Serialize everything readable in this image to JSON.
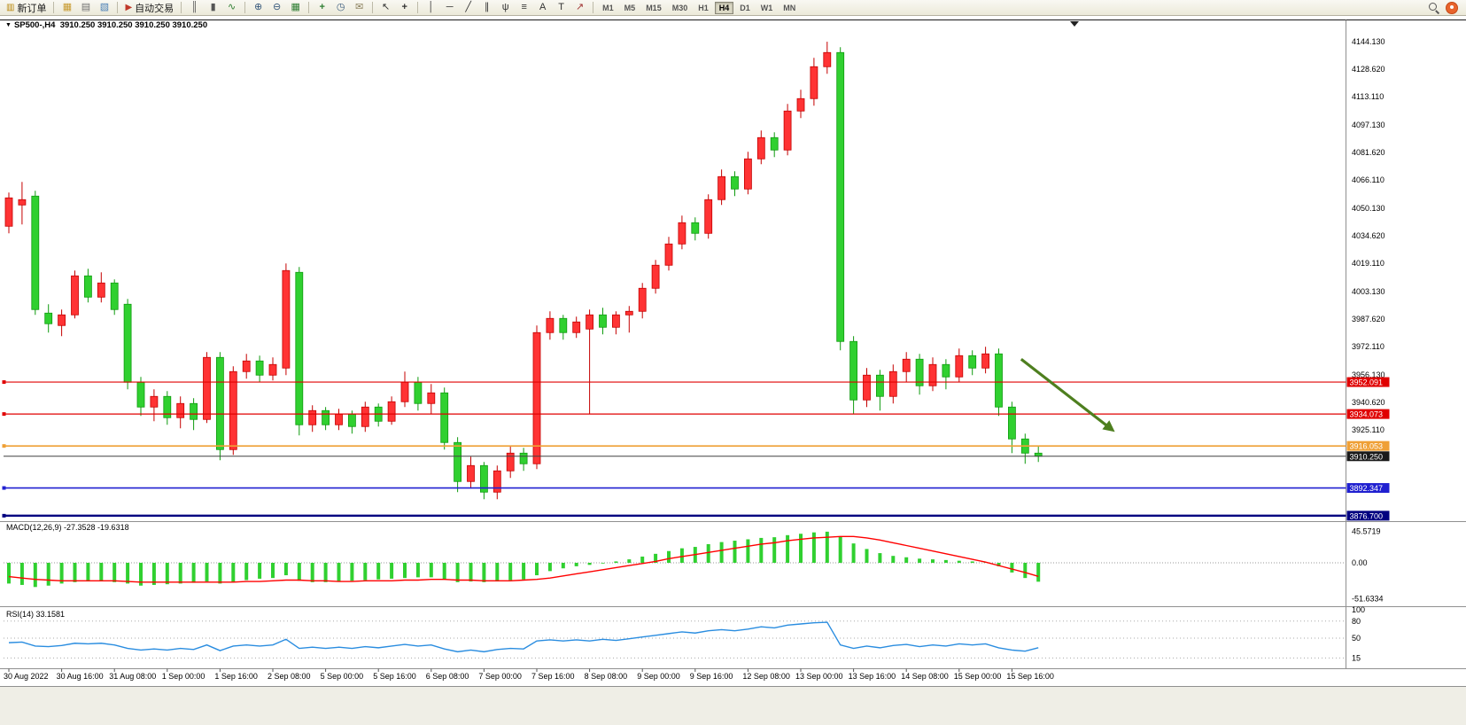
{
  "toolbar": {
    "new_order": {
      "label": "新订单",
      "icon": "new-order-icon",
      "glyph": "▥",
      "color": "#b8860b"
    },
    "head_icons": [
      {
        "name": "charts-icon",
        "glyph": "▦",
        "color": "#c79a2e"
      },
      {
        "name": "print-icon",
        "glyph": "▤",
        "color": "#707070"
      },
      {
        "name": "preview-icon",
        "glyph": "▧",
        "color": "#4a7fb5"
      }
    ],
    "autotrading": {
      "label": "自动交易",
      "icon": "autotrading-icon",
      "glyph": "▶",
      "color": "#c0392b"
    },
    "icons": [
      {
        "name": "bar-chart-icon",
        "glyph": "║",
        "color": "#555555"
      },
      {
        "name": "candlestick-icon",
        "glyph": "▮",
        "color": "#555555"
      },
      {
        "name": "line-chart-icon",
        "glyph": "∿",
        "color": "#2e7d32"
      },
      {
        "sep": true
      },
      {
        "name": "zoom-in-icon",
        "glyph": "⊕",
        "color": "#34567a"
      },
      {
        "name": "zoom-out-icon",
        "glyph": "⊖",
        "color": "#34567a"
      },
      {
        "name": "tile-windows-icon",
        "glyph": "▦",
        "color": "#2e7d32"
      },
      {
        "sep": true
      },
      {
        "name": "indicators-icon",
        "glyph": "+",
        "color": "#2e7d32",
        "bold": true
      },
      {
        "name": "clock-icon",
        "glyph": "◷",
        "color": "#34567a"
      },
      {
        "name": "template-icon",
        "glyph": "✉",
        "color": "#8a7f5c"
      },
      {
        "sep": true
      },
      {
        "name": "cursor-icon",
        "glyph": "↖",
        "color": "#333333"
      },
      {
        "name": "crosshair-icon",
        "glyph": "+",
        "color": "#333333",
        "bold": true
      },
      {
        "sep": true
      },
      {
        "name": "vline-icon",
        "glyph": "│",
        "color": "#333333"
      },
      {
        "name": "hline-icon",
        "glyph": "─",
        "color": "#333333"
      },
      {
        "name": "trendline-icon",
        "glyph": "╱",
        "color": "#333333"
      },
      {
        "name": "channel-icon",
        "glyph": "∥",
        "color": "#333333"
      },
      {
        "name": "pitchfork-icon",
        "glyph": "ψ",
        "color": "#333333"
      },
      {
        "name": "fibo-icon",
        "glyph": "≡",
        "color": "#333333"
      },
      {
        "name": "text-icon",
        "glyph": "A",
        "color": "#333333"
      },
      {
        "name": "label-icon",
        "glyph": "T",
        "color": "#333333"
      },
      {
        "name": "arrows-icon",
        "glyph": "↗",
        "color": "#a03333"
      }
    ],
    "timeframes": {
      "labels": [
        "M1",
        "M5",
        "M15",
        "M30",
        "H1",
        "H4",
        "D1",
        "W1",
        "MN"
      ],
      "active": "H4"
    },
    "right_icons": [
      {
        "name": "search-icon"
      },
      {
        "name": "notification-icon",
        "color": "#e8642c"
      }
    ]
  },
  "chart": {
    "symbol": "SP500-,H4",
    "ohlc": "3910.250 3910.250 3910.250 3910.250",
    "price_axis": [
      "4144.130",
      "4128.620",
      "4113.110",
      "4097.130",
      "4081.620",
      "4066.110",
      "4050.130",
      "4034.620",
      "4019.110",
      "4003.130",
      "3987.620",
      "3972.110",
      "3956.130",
      "3940.620",
      "3925.110"
    ],
    "price_labels": [
      {
        "text": "3952.091",
        "value": 3952.091,
        "bg": "#e00000"
      },
      {
        "text": "3934.073",
        "value": 3934.073,
        "bg": "#e00000"
      },
      {
        "text": "3916.053",
        "value": 3916.053,
        "bg": "#efa036"
      },
      {
        "text": "3910.250",
        "value": 3910.25,
        "bg": "#1a1a1a"
      },
      {
        "text": "3892.347",
        "value": 3892.347,
        "bg": "#2020d0"
      },
      {
        "text": "3876.700",
        "value": 3876.7,
        "bg": "#000080"
      }
    ],
    "hlines": [
      {
        "value": 3952.091,
        "color": "#e00000",
        "width": 1.2,
        "handle": true
      },
      {
        "value": 3934.073,
        "color": "#e00000",
        "width": 1.2,
        "handle": true
      },
      {
        "value": 3916.053,
        "color": "#efa036",
        "width": 1.6,
        "handle": true
      },
      {
        "value": 3910.25,
        "color": "#404040",
        "width": 1,
        "handle": false
      },
      {
        "value": 3892.347,
        "color": "#2020d0",
        "width": 1.6,
        "handle": true
      },
      {
        "value": 3876.7,
        "color": "#000080",
        "width": 2.4,
        "handle": true
      }
    ],
    "arrow": {
      "from_index": 76.7,
      "from_price": 3965,
      "to_index": 83.8,
      "to_price": 3924,
      "color": "#4e7f1f"
    },
    "colors": {
      "up_fill": "#ff3334",
      "up_stroke": "#c40000",
      "down_fill": "#30d030",
      "down_stroke": "#0f9b0f"
    },
    "candles": [
      [
        4040,
        4059,
        4036,
        4056
      ],
      [
        4052,
        4065,
        4041,
        4055
      ],
      [
        4057,
        4060,
        3990,
        3993
      ],
      [
        3991,
        3996,
        3980,
        3985
      ],
      [
        3984,
        3993,
        3978,
        3990
      ],
      [
        3990,
        4015,
        3988,
        4012
      ],
      [
        4012,
        4016,
        3997,
        4000
      ],
      [
        4000,
        4014,
        3997,
        4008
      ],
      [
        4008,
        4010,
        3990,
        3993
      ],
      [
        3996,
        3999,
        3948,
        3952
      ],
      [
        3952,
        3955,
        3933,
        3938
      ],
      [
        3938,
        3948,
        3930,
        3944
      ],
      [
        3944,
        3947,
        3928,
        3932
      ],
      [
        3932,
        3944,
        3926,
        3940
      ],
      [
        3940,
        3943,
        3925,
        3931
      ],
      [
        3931,
        3969,
        3929,
        3966
      ],
      [
        3966,
        3969,
        3908,
        3914
      ],
      [
        3914,
        3961,
        3911,
        3958
      ],
      [
        3958,
        3968,
        3954,
        3964
      ],
      [
        3964,
        3967,
        3952,
        3956
      ],
      [
        3956,
        3966,
        3953,
        3962
      ],
      [
        3960,
        4019,
        3956,
        4015
      ],
      [
        4014,
        4017,
        3922,
        3928
      ],
      [
        3928,
        3939,
        3924,
        3936
      ],
      [
        3936,
        3938,
        3925,
        3928
      ],
      [
        3928,
        3937,
        3925,
        3934
      ],
      [
        3934,
        3936,
        3923,
        3927
      ],
      [
        3927,
        3941,
        3924,
        3938
      ],
      [
        3938,
        3940,
        3927,
        3930
      ],
      [
        3930,
        3944,
        3928,
        3941
      ],
      [
        3941,
        3958,
        3938,
        3952
      ],
      [
        3952,
        3955,
        3936,
        3940
      ],
      [
        3940,
        3951,
        3934,
        3946
      ],
      [
        3946,
        3949,
        3914,
        3918
      ],
      [
        3918,
        3921,
        3890,
        3896
      ],
      [
        3896,
        3910,
        3892,
        3905
      ],
      [
        3905,
        3907,
        3886,
        3890
      ],
      [
        3890,
        3905,
        3886,
        3902
      ],
      [
        3902,
        3916,
        3898,
        3912
      ],
      [
        3912,
        3915,
        3902,
        3906
      ],
      [
        3906,
        3984,
        3903,
        3980
      ],
      [
        3980,
        3992,
        3976,
        3988
      ],
      [
        3988,
        3990,
        3976,
        3980
      ],
      [
        3980,
        3989,
        3977,
        3986
      ],
      [
        3982,
        3993,
        3934,
        3990
      ],
      [
        3990,
        3994,
        3979,
        3983
      ],
      [
        3983,
        3992,
        3979,
        3990
      ],
      [
        3990,
        3995,
        3980,
        3992
      ],
      [
        3992,
        4008,
        3988,
        4005
      ],
      [
        4005,
        4021,
        4002,
        4018
      ],
      [
        4018,
        4034,
        4015,
        4030
      ],
      [
        4030,
        4046,
        4027,
        4042
      ],
      [
        4042,
        4045,
        4032,
        4036
      ],
      [
        4036,
        4058,
        4033,
        4055
      ],
      [
        4055,
        4072,
        4052,
        4068
      ],
      [
        4068,
        4071,
        4057,
        4061
      ],
      [
        4061,
        4082,
        4058,
        4078
      ],
      [
        4078,
        4094,
        4075,
        4090
      ],
      [
        4090,
        4093,
        4079,
        4083
      ],
      [
        4083,
        4109,
        4080,
        4105
      ],
      [
        4105,
        4117,
        4101,
        4112
      ],
      [
        4112,
        4135,
        4108,
        4130
      ],
      [
        4130,
        4144.1,
        4126,
        4138
      ],
      [
        4138,
        4141,
        3970,
        3975
      ],
      [
        3975,
        3978,
        3934,
        3942
      ],
      [
        3942,
        3960,
        3938,
        3956
      ],
      [
        3956,
        3959,
        3936,
        3944
      ],
      [
        3944,
        3962,
        3940,
        3958
      ],
      [
        3958,
        3969,
        3952,
        3965
      ],
      [
        3965,
        3968,
        3945,
        3950
      ],
      [
        3950,
        3966,
        3947,
        3962
      ],
      [
        3962,
        3965,
        3948,
        3955
      ],
      [
        3955,
        3971,
        3952,
        3967
      ],
      [
        3967,
        3970,
        3956,
        3960
      ],
      [
        3960,
        3972,
        3957,
        3968
      ],
      [
        3968,
        3971,
        3933,
        3938
      ],
      [
        3938,
        3941,
        3912,
        3920
      ],
      [
        3920,
        3923,
        3906,
        3912
      ],
      [
        3912,
        3916,
        3907,
        3910.25
      ]
    ]
  },
  "macd": {
    "label": "MACD(12,26,9) -27.3528 -19.6318",
    "axis": [
      "45.5719",
      "0.00",
      "-51.6334"
    ],
    "colors": {
      "histogram": "#30d030",
      "signal": "#ff0000"
    },
    "histogram": [
      -30,
      -32,
      -35,
      -33,
      -30,
      -28,
      -27,
      -26,
      -28,
      -30,
      -33,
      -32,
      -31,
      -30,
      -29,
      -27,
      -30,
      -28,
      -25,
      -23,
      -22,
      -18,
      -26,
      -28,
      -28,
      -27,
      -26,
      -25,
      -24,
      -23,
      -22,
      -21,
      -21,
      -24,
      -28,
      -27,
      -28,
      -27,
      -25,
      -24,
      -18,
      -12,
      -8,
      -5,
      -3,
      -1,
      2,
      5,
      9,
      13,
      17,
      21,
      23,
      27,
      30,
      32,
      34,
      36,
      37,
      40,
      42,
      44,
      45,
      38,
      28,
      20,
      14,
      10,
      8,
      6,
      5,
      4,
      3,
      2,
      1,
      -5,
      -14,
      -22,
      -27.35
    ],
    "signal": [
      -20,
      -22,
      -24,
      -25,
      -26,
      -26,
      -26,
      -26,
      -26,
      -27,
      -28,
      -28,
      -28,
      -28,
      -28,
      -28,
      -28,
      -28,
      -27,
      -27,
      -26,
      -25,
      -25,
      -26,
      -26,
      -27,
      -27,
      -26,
      -26,
      -26,
      -25,
      -25,
      -24,
      -24,
      -25,
      -25,
      -26,
      -26,
      -26,
      -25,
      -24,
      -22,
      -19,
      -16,
      -13,
      -10,
      -7,
      -4,
      -1,
      2,
      6,
      9,
      12,
      15,
      18,
      21,
      24,
      27,
      29,
      32,
      34,
      36,
      37,
      38,
      38,
      36,
      33,
      29,
      25,
      21,
      17,
      13,
      9,
      5,
      1,
      -4,
      -9,
      -14,
      -19.63
    ]
  },
  "rsi": {
    "label": "RSI(14) 33.1581",
    "axis": [
      "100",
      "80",
      "50",
      "15"
    ],
    "levels": [
      80,
      50,
      15
    ],
    "color": "#2a8de0",
    "values": [
      42,
      43,
      36,
      35,
      37,
      41,
      40,
      41,
      38,
      32,
      29,
      31,
      29,
      32,
      30,
      38,
      28,
      36,
      38,
      36,
      38,
      48,
      32,
      34,
      32,
      34,
      32,
      35,
      33,
      36,
      39,
      36,
      38,
      31,
      26,
      29,
      26,
      30,
      32,
      31,
      45,
      47,
      45,
      47,
      45,
      48,
      46,
      49,
      52,
      55,
      58,
      61,
      59,
      63,
      65,
      63,
      66,
      70,
      68,
      73,
      75,
      77,
      78,
      38,
      32,
      36,
      33,
      37,
      39,
      35,
      38,
      36,
      40,
      38,
      40,
      33,
      29,
      27,
      33.16
    ]
  },
  "time_axis": [
    "30 Aug 2022",
    "30 Aug 16:00",
    "31 Aug 08:00",
    "1 Sep 00:00",
    "1 Sep 16:00",
    "2 Sep 08:00",
    "5 Sep 00:00",
    "5 Sep 16:00",
    "6 Sep 08:00",
    "7 Sep 00:00",
    "7 Sep 16:00",
    "8 Sep 08:00",
    "9 Sep 00:00",
    "9 Sep 16:00",
    "12 Sep 08:00",
    "13 Sep 00:00",
    "13 Sep 16:00",
    "14 Sep 08:00",
    "15 Sep 00:00",
    "15 Sep 16:00"
  ]
}
